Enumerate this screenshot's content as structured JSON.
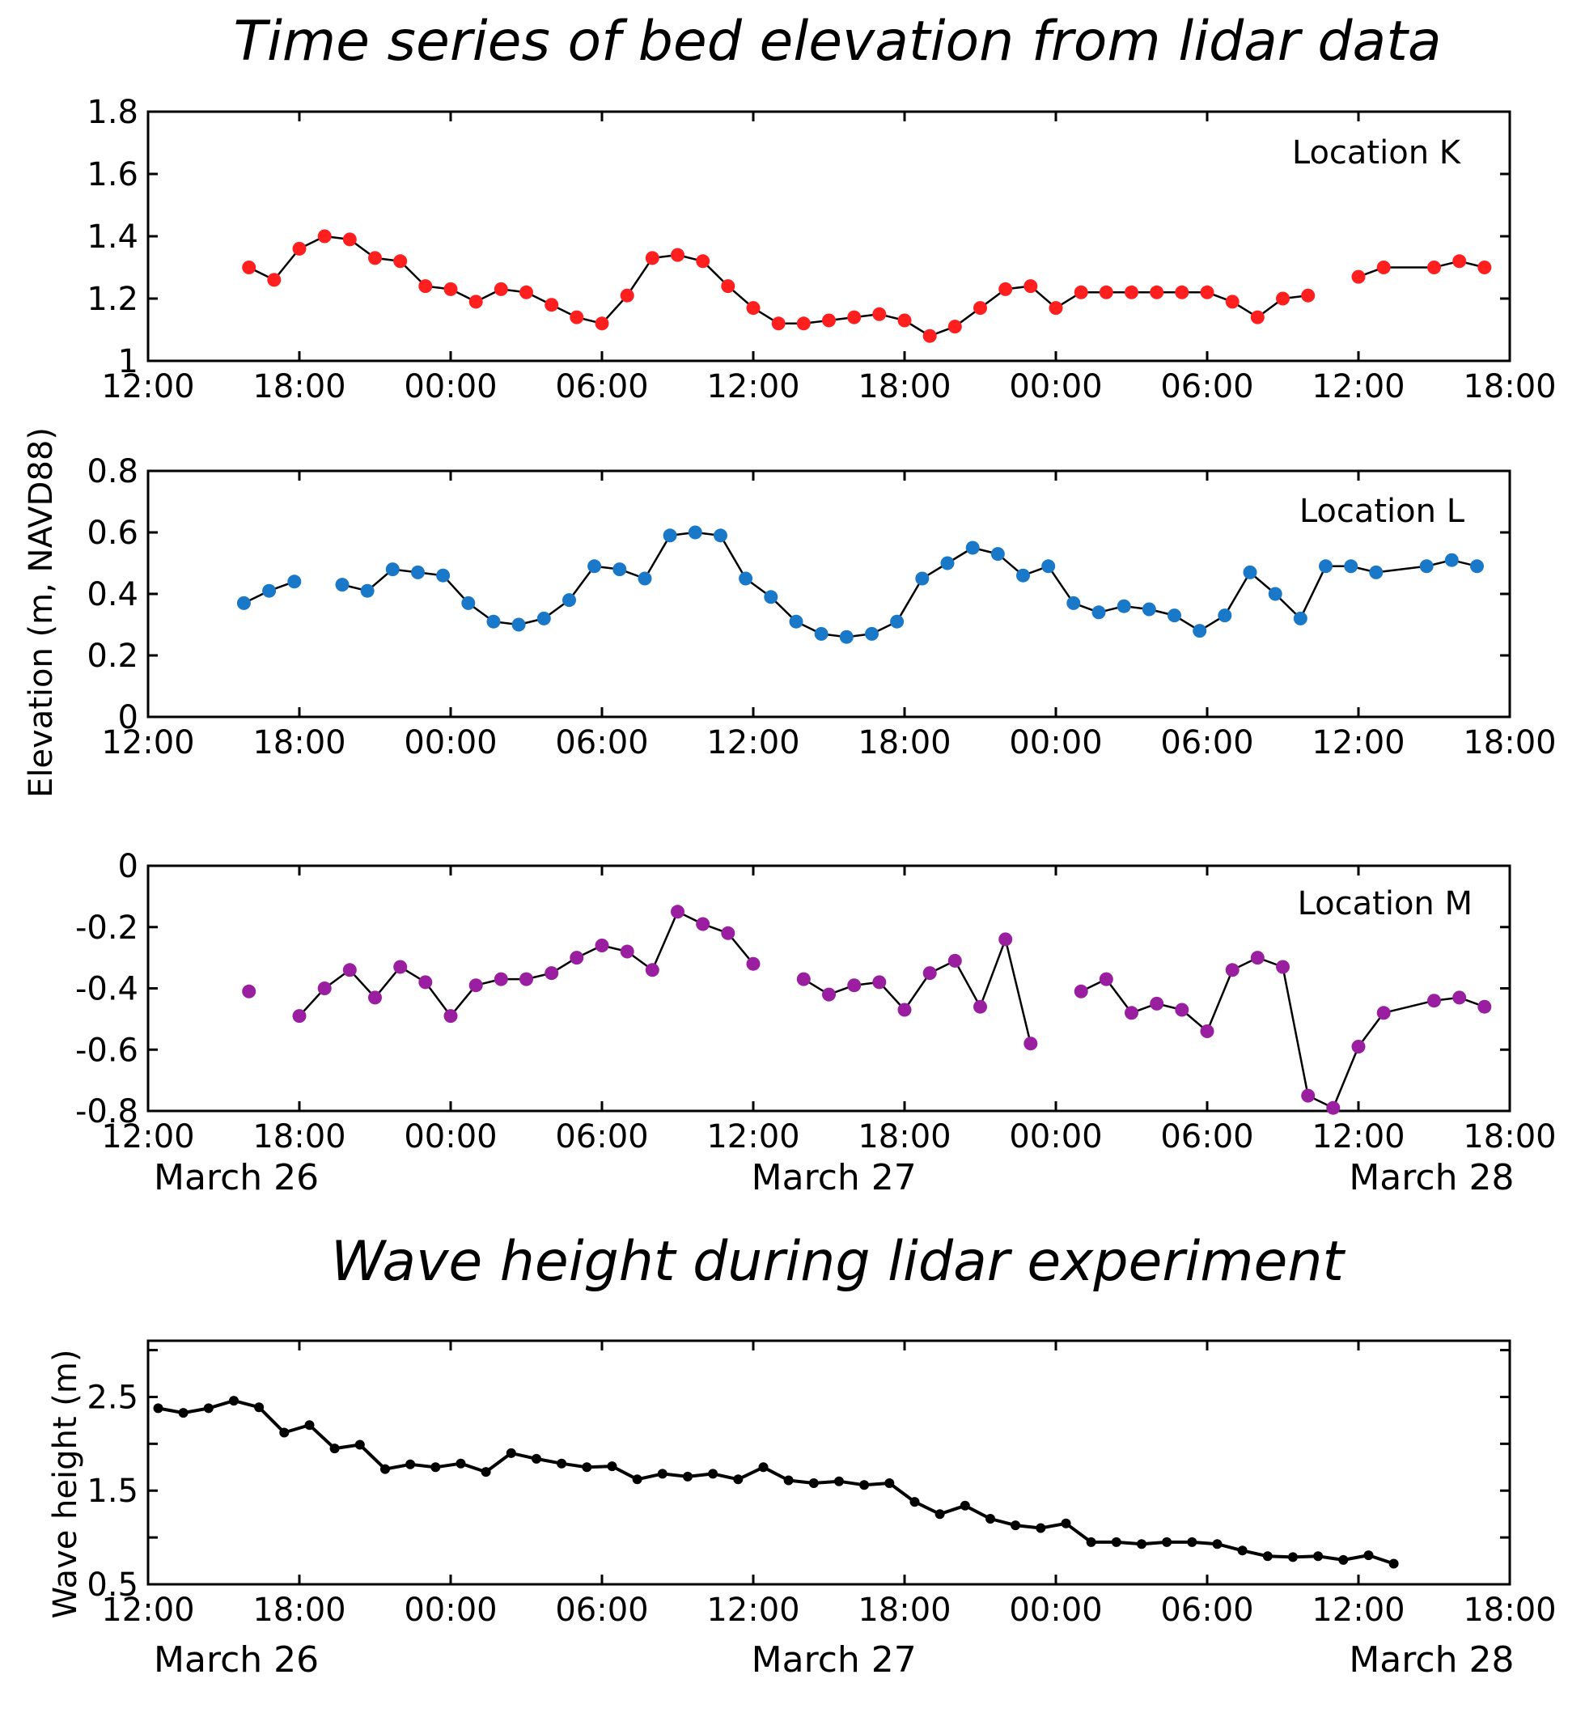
{
  "titles": {
    "top": "Time series of bed elevation from lidar data",
    "bottom": "Wave height during lidar experiment"
  },
  "y_labels": {
    "elevation": "Elevation (m, NAVD88)",
    "wave": "Wave height (m)"
  },
  "x_tick_labels": [
    "12:00",
    "18:00",
    "00:00",
    "06:00",
    "12:00",
    "18:00",
    "00:00",
    "06:00",
    "12:00",
    "18:00"
  ],
  "date_labels": [
    {
      "text": "March 26",
      "hour": 3.5
    },
    {
      "text": "March 27",
      "hour": 27.2
    },
    {
      "text": "March 28",
      "hour": 50.9
    }
  ],
  "colors": {
    "K": "#ff1f1f",
    "L": "#1a78c8",
    "M": "#9a1fa0",
    "wave": "#000000",
    "line": "#000000"
  },
  "chart_data": [
    {
      "type": "line",
      "name": "Location K",
      "annotation": "Location K",
      "x_unit": "hours since March 26 12:00",
      "xlim": [
        0,
        54
      ],
      "ylim": [
        1,
        1.8
      ],
      "yticks": [
        1,
        1.2,
        1.4,
        1.6,
        1.8
      ],
      "ytick_labels": [
        "1",
        "1.2",
        "1.4",
        "1.6",
        "1.8"
      ],
      "segments": [
        [
          [
            4,
            1.3
          ],
          [
            5,
            1.26
          ],
          [
            6,
            1.36
          ],
          [
            7,
            1.4
          ],
          [
            8,
            1.39
          ],
          [
            9,
            1.33
          ],
          [
            10,
            1.32
          ],
          [
            11,
            1.24
          ],
          [
            12,
            1.23
          ],
          [
            13,
            1.19
          ],
          [
            14,
            1.23
          ],
          [
            15,
            1.22
          ],
          [
            16,
            1.18
          ],
          [
            17,
            1.14
          ],
          [
            18,
            1.12
          ],
          [
            19,
            1.21
          ],
          [
            20,
            1.33
          ],
          [
            21,
            1.34
          ],
          [
            22,
            1.32
          ],
          [
            23,
            1.24
          ],
          [
            24,
            1.17
          ],
          [
            25,
            1.12
          ],
          [
            26,
            1.12
          ],
          [
            27,
            1.13
          ],
          [
            28,
            1.14
          ],
          [
            29,
            1.15
          ],
          [
            30,
            1.13
          ],
          [
            31,
            1.08
          ],
          [
            32,
            1.11
          ],
          [
            33,
            1.17
          ],
          [
            34,
            1.23
          ],
          [
            35,
            1.24
          ],
          [
            36,
            1.17
          ],
          [
            37,
            1.22
          ],
          [
            38,
            1.22
          ],
          [
            39,
            1.22
          ],
          [
            40,
            1.22
          ],
          [
            41,
            1.22
          ],
          [
            42,
            1.22
          ],
          [
            43,
            1.19
          ],
          [
            44,
            1.14
          ],
          [
            45,
            1.2
          ],
          [
            46,
            1.21
          ]
        ],
        [
          [
            48,
            1.27
          ],
          [
            49,
            1.3
          ],
          [
            51,
            1.3
          ],
          [
            52,
            1.32
          ],
          [
            53,
            1.3
          ]
        ]
      ]
    },
    {
      "type": "line",
      "name": "Location L",
      "annotation": "Location L",
      "x_unit": "hours since March 26 12:00",
      "xlim": [
        0,
        54
      ],
      "ylim": [
        0,
        0.8
      ],
      "yticks": [
        0,
        0.2,
        0.4,
        0.6,
        0.8
      ],
      "ytick_labels": [
        "0",
        "0.2",
        "0.4",
        "0.6",
        "0.8"
      ],
      "segments": [
        [
          [
            3.8,
            0.37
          ],
          [
            4.8,
            0.41
          ],
          [
            5.8,
            0.44
          ]
        ],
        [
          [
            7.7,
            0.43
          ],
          [
            8.7,
            0.41
          ],
          [
            9.7,
            0.48
          ],
          [
            10.7,
            0.47
          ],
          [
            11.7,
            0.46
          ],
          [
            12.7,
            0.37
          ],
          [
            13.7,
            0.31
          ],
          [
            14.7,
            0.3
          ],
          [
            15.7,
            0.32
          ],
          [
            16.7,
            0.38
          ],
          [
            17.7,
            0.49
          ],
          [
            18.7,
            0.48
          ],
          [
            19.7,
            0.45
          ],
          [
            20.7,
            0.59
          ],
          [
            21.7,
            0.6
          ],
          [
            22.7,
            0.59
          ],
          [
            23.7,
            0.45
          ],
          [
            24.7,
            0.39
          ],
          [
            25.7,
            0.31
          ],
          [
            26.7,
            0.27
          ],
          [
            27.7,
            0.26
          ],
          [
            28.7,
            0.27
          ],
          [
            29.7,
            0.31
          ],
          [
            30.7,
            0.45
          ],
          [
            31.7,
            0.5
          ],
          [
            32.7,
            0.55
          ],
          [
            33.7,
            0.53
          ],
          [
            34.7,
            0.46
          ],
          [
            35.7,
            0.49
          ],
          [
            36.7,
            0.37
          ],
          [
            37.7,
            0.34
          ],
          [
            38.7,
            0.36
          ],
          [
            39.7,
            0.35
          ],
          [
            40.7,
            0.33
          ],
          [
            41.7,
            0.28
          ],
          [
            42.7,
            0.33
          ],
          [
            43.7,
            0.47
          ],
          [
            44.7,
            0.4
          ],
          [
            45.7,
            0.32
          ],
          [
            46.7,
            0.49
          ],
          [
            47.7,
            0.49
          ],
          [
            48.7,
            0.47
          ],
          [
            50.7,
            0.49
          ],
          [
            51.7,
            0.51
          ],
          [
            52.7,
            0.49
          ]
        ]
      ]
    },
    {
      "type": "line",
      "name": "Location M",
      "annotation": "Location M",
      "x_unit": "hours since March 26 12:00",
      "xlim": [
        0,
        54
      ],
      "ylim": [
        -0.8,
        0
      ],
      "yticks": [
        -0.8,
        -0.6,
        -0.4,
        -0.2,
        0
      ],
      "ytick_labels": [
        "-0.8",
        "-0.6",
        "-0.4",
        "-0.2",
        "0"
      ],
      "segments": [
        [
          [
            4,
            -0.41
          ]
        ],
        [
          [
            6,
            -0.49
          ],
          [
            7,
            -0.4
          ],
          [
            8,
            -0.34
          ],
          [
            9,
            -0.43
          ],
          [
            10,
            -0.33
          ],
          [
            11,
            -0.38
          ],
          [
            12,
            -0.49
          ],
          [
            13,
            -0.39
          ],
          [
            14,
            -0.37
          ],
          [
            15,
            -0.37
          ],
          [
            16,
            -0.35
          ],
          [
            17,
            -0.3
          ],
          [
            18,
            -0.26
          ],
          [
            19,
            -0.28
          ],
          [
            20,
            -0.34
          ],
          [
            21,
            -0.15
          ],
          [
            22,
            -0.19
          ],
          [
            23,
            -0.22
          ],
          [
            24,
            -0.32
          ]
        ],
        [
          [
            26,
            -0.37
          ],
          [
            27,
            -0.42
          ],
          [
            28,
            -0.39
          ],
          [
            29,
            -0.38
          ],
          [
            30,
            -0.47
          ],
          [
            31,
            -0.35
          ],
          [
            32,
            -0.31
          ],
          [
            33,
            -0.46
          ],
          [
            34,
            -0.24
          ],
          [
            35,
            -0.58
          ]
        ],
        [
          [
            37,
            -0.41
          ],
          [
            38,
            -0.37
          ],
          [
            39,
            -0.48
          ],
          [
            40,
            -0.45
          ],
          [
            41,
            -0.47
          ],
          [
            42,
            -0.54
          ],
          [
            43,
            -0.34
          ],
          [
            44,
            -0.3
          ],
          [
            45,
            -0.33
          ],
          [
            46,
            -0.75
          ],
          [
            47,
            -0.79
          ],
          [
            48,
            -0.59
          ],
          [
            49,
            -0.48
          ],
          [
            51,
            -0.44
          ],
          [
            52,
            -0.43
          ],
          [
            53,
            -0.46
          ]
        ]
      ]
    },
    {
      "type": "line",
      "name": "Wave height",
      "annotation": "",
      "x_unit": "hours since March 26 12:00",
      "xlim": [
        0,
        54
      ],
      "ylim": [
        0.5,
        3.1
      ],
      "yticks": [
        0.5,
        1.5,
        2.5
      ],
      "ytick_labels": [
        "0.5",
        "1.5",
        "2.5"
      ],
      "segments": [
        [
          [
            0.4,
            2.38
          ],
          [
            1.4,
            2.33
          ],
          [
            2.4,
            2.38
          ],
          [
            3.4,
            2.46
          ],
          [
            4.4,
            2.39
          ],
          [
            5.4,
            2.12
          ],
          [
            6.4,
            2.2
          ],
          [
            7.4,
            1.95
          ],
          [
            8.4,
            1.99
          ],
          [
            9.4,
            1.73
          ],
          [
            10.4,
            1.78
          ],
          [
            11.4,
            1.75
          ],
          [
            12.4,
            1.79
          ],
          [
            13.4,
            1.7
          ],
          [
            14.4,
            1.9
          ],
          [
            15.4,
            1.84
          ],
          [
            16.4,
            1.79
          ],
          [
            17.4,
            1.75
          ],
          [
            18.4,
            1.76
          ],
          [
            19.4,
            1.62
          ],
          [
            20.4,
            1.68
          ],
          [
            21.4,
            1.65
          ],
          [
            22.4,
            1.68
          ],
          [
            23.4,
            1.62
          ],
          [
            24.4,
            1.75
          ],
          [
            25.4,
            1.61
          ],
          [
            26.4,
            1.58
          ],
          [
            27.4,
            1.6
          ],
          [
            28.4,
            1.56
          ],
          [
            29.4,
            1.58
          ],
          [
            30.4,
            1.38
          ],
          [
            31.4,
            1.25
          ],
          [
            32.4,
            1.34
          ],
          [
            33.4,
            1.2
          ],
          [
            34.4,
            1.13
          ],
          [
            35.4,
            1.1
          ],
          [
            36.4,
            1.15
          ],
          [
            37.4,
            0.95
          ],
          [
            38.4,
            0.95
          ],
          [
            39.4,
            0.93
          ],
          [
            40.4,
            0.95
          ],
          [
            41.4,
            0.95
          ],
          [
            42.4,
            0.93
          ],
          [
            43.4,
            0.86
          ],
          [
            44.4,
            0.8
          ],
          [
            45.4,
            0.79
          ],
          [
            46.4,
            0.8
          ],
          [
            47.4,
            0.76
          ],
          [
            48.4,
            0.81
          ],
          [
            49.4,
            0.72
          ]
        ]
      ]
    }
  ]
}
